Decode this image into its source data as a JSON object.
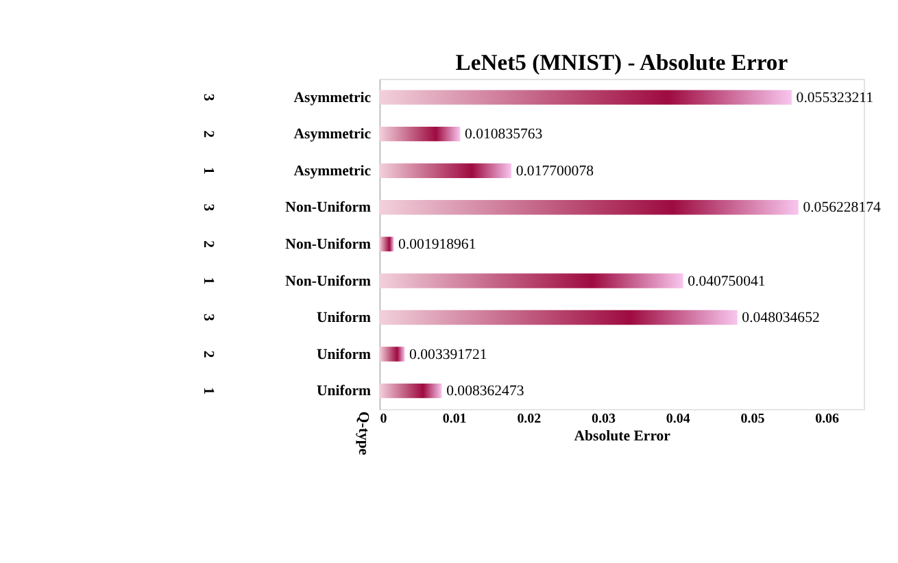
{
  "chart_data": {
    "type": "bar",
    "orientation": "horizontal",
    "title": "LeNet5 (MNIST) -  Absolute Error",
    "xlabel": "Absolute Error",
    "ylabel": "Q-type",
    "categories": [
      "Asymmetric",
      "Asymmetric",
      "Asymmetric",
      "Non-Uniform",
      "Non-Uniform",
      "Non-Uniform",
      "Uniform",
      "Uniform",
      "Uniform"
    ],
    "y2_categories": [
      "3",
      "2",
      "1",
      "3",
      "2",
      "1",
      "3",
      "2",
      "1"
    ],
    "values": [
      0.055323211,
      0.010835763,
      0.017700078,
      0.056228174,
      0.001918961,
      0.040750041,
      0.048034652,
      0.003391721,
      0.008362473
    ],
    "color": "#9e0b40",
    "data_labels": true,
    "xlim": [
      0,
      0.065
    ],
    "xticks": [
      0,
      0.01,
      0.02,
      0.03,
      0.04,
      0.05,
      0.06
    ],
    "grid": false
  }
}
